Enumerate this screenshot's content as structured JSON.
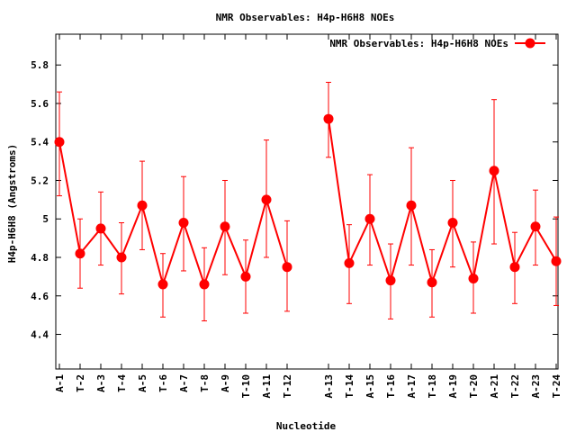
{
  "chart_data": {
    "type": "line",
    "title": "NMR Observables: H4p-H6H8 NOEs",
    "xlabel": "Nucleotide",
    "ylabel": "H4p-H6H8 (Angstroms)",
    "ylim": [
      4.22,
      5.96
    ],
    "yticks": [
      4.4,
      4.6,
      4.8,
      5,
      5.2,
      5.4,
      5.6,
      5.8
    ],
    "ytick_labels": [
      "4.4",
      "4.6",
      "4.8",
      "5",
      "5.2",
      "5.4",
      "5.6",
      "5.8"
    ],
    "grid": false,
    "legend_position": "top-right",
    "color": "#ff0000",
    "categories": [
      "A-1",
      "T-2",
      "A-3",
      "T-4",
      "A-5",
      "T-6",
      "A-7",
      "T-8",
      "A-9",
      "T-10",
      "A-11",
      "T-12",
      "A-13",
      "T-14",
      "A-15",
      "T-16",
      "A-17",
      "T-18",
      "A-19",
      "T-20",
      "A-21",
      "T-22",
      "A-23",
      "T-24"
    ],
    "series": [
      {
        "name": "NMR Observables: H4p-H6H8 NOEs",
        "segments": [
          {
            "x": [
              1,
              2,
              3,
              4,
              5,
              6,
              7,
              8,
              9,
              10,
              11,
              12
            ],
            "values": [
              5.4,
              4.82,
              4.95,
              4.8,
              5.07,
              4.66,
              4.98,
              4.66,
              4.96,
              4.7,
              5.1,
              4.75
            ],
            "err_low": [
              5.12,
              4.64,
              4.76,
              4.61,
              4.84,
              4.49,
              4.73,
              4.47,
              4.71,
              4.51,
              4.8,
              4.52
            ],
            "err_high": [
              5.66,
              5.0,
              5.14,
              4.98,
              5.3,
              4.82,
              5.22,
              4.85,
              5.2,
              4.89,
              5.41,
              4.99
            ]
          },
          {
            "x": [
              14,
              15,
              16,
              17,
              18,
              19,
              20,
              21,
              22,
              23,
              24,
              25
            ],
            "values": [
              5.52,
              4.77,
              5.0,
              4.68,
              5.07,
              4.67,
              4.98,
              4.69,
              5.25,
              4.75,
              4.96,
              4.78
            ],
            "err_low": [
              5.32,
              4.56,
              4.76,
              4.48,
              4.76,
              4.49,
              4.75,
              4.51,
              4.87,
              4.56,
              4.76,
              4.55
            ],
            "err_high": [
              5.71,
              4.97,
              5.23,
              4.87,
              5.37,
              4.84,
              5.2,
              4.88,
              5.62,
              4.93,
              5.15,
              5.01
            ]
          }
        ]
      }
    ]
  }
}
